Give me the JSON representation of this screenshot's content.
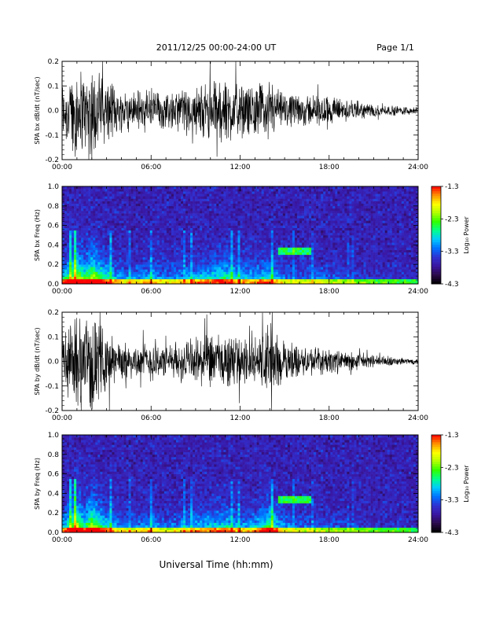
{
  "header": {
    "date_range": "2011/12/25  00:00-24:00 UT",
    "page": "Page 1/1"
  },
  "x_axis": {
    "label": "Universal Time (hh:mm)",
    "ticks": [
      "00:00",
      "06:00",
      "12:00",
      "18:00",
      "24:00"
    ]
  },
  "colorbar": {
    "label": "Log₁₀ Power",
    "ticks": [
      "-1.3",
      "-2.3",
      "-3.3",
      "-4.3"
    ]
  },
  "colors": {
    "axis": "#000000",
    "trace": "#000000",
    "colormap": [
      "#000000",
      "#2a0a4a",
      "#3a16a0",
      "#3030d0",
      "#0070ff",
      "#00c8ff",
      "#00ff90",
      "#30ff00",
      "#b0ff00",
      "#ffff00",
      "#ff9000",
      "#ff0000"
    ]
  },
  "chart_data": [
    {
      "type": "line",
      "panel": "bx-waveform",
      "ylabel": "SPA bx dB/dt (nT/sec)",
      "xlim": [
        0,
        24
      ],
      "ylim": [
        -0.2,
        0.2
      ],
      "yticks": [
        "0.2",
        "0.1",
        "0.0",
        "-0.1",
        "-0.2"
      ],
      "envelope": {
        "hours": [
          0,
          1,
          1.5,
          2,
          3,
          4,
          5,
          6,
          7,
          8,
          9,
          10,
          11,
          12,
          13,
          14,
          15,
          16,
          17,
          18,
          19,
          20,
          21,
          22,
          23,
          24
        ],
        "amplitude": [
          0.12,
          0.2,
          0.15,
          0.2,
          0.13,
          0.08,
          0.08,
          0.1,
          0.07,
          0.09,
          0.1,
          0.12,
          0.14,
          0.1,
          0.1,
          0.12,
          0.07,
          0.06,
          0.07,
          0.06,
          0.05,
          0.04,
          0.025,
          0.02,
          0.02,
          0.015
        ]
      }
    },
    {
      "type": "heatmap",
      "panel": "bx-spectrogram",
      "ylabel": "SPA bx Freq (Hz)",
      "xlim": [
        0,
        24
      ],
      "ylim": [
        0,
        1.0
      ],
      "yticks": [
        "1.0",
        "0.8",
        "0.6",
        "0.4",
        "0.2",
        "0.0"
      ],
      "zlim": [
        -4.3,
        -1.3
      ]
    },
    {
      "type": "line",
      "panel": "by-waveform",
      "ylabel": "SPA by dB/dt (nT/sec)",
      "xlim": [
        0,
        24
      ],
      "ylim": [
        -0.2,
        0.2
      ],
      "yticks": [
        "0.2",
        "0.1",
        "0.0",
        "-0.1",
        "-0.2"
      ],
      "envelope": {
        "hours": [
          0,
          1,
          1.5,
          2,
          3,
          4,
          5,
          6,
          7,
          8,
          9,
          10,
          11,
          12,
          13,
          14,
          15,
          16,
          17,
          18,
          19,
          20,
          21,
          22,
          23,
          24
        ],
        "amplitude": [
          0.1,
          0.2,
          0.14,
          0.2,
          0.12,
          0.08,
          0.07,
          0.09,
          0.06,
          0.08,
          0.1,
          0.11,
          0.12,
          0.09,
          0.1,
          0.16,
          0.08,
          0.06,
          0.06,
          0.05,
          0.04,
          0.035,
          0.025,
          0.02,
          0.015,
          0.012
        ]
      }
    },
    {
      "type": "heatmap",
      "panel": "by-spectrogram",
      "ylabel": "SPA by Freq (Hz)",
      "xlim": [
        0,
        24
      ],
      "ylim": [
        0,
        1.0
      ],
      "yticks": [
        "1.0",
        "0.8",
        "0.6",
        "0.4",
        "0.2",
        "0.0"
      ],
      "zlim": [
        -4.3,
        -1.3
      ]
    }
  ]
}
